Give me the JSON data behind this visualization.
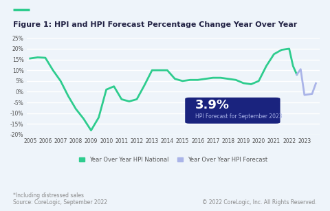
{
  "title": "Figure 1: HPI and HPI Forecast Percentage Change Year Over Year",
  "title_line_color": "#2ecc8e",
  "background_color": "#eef4fa",
  "plot_bg_color": "#eef4fa",
  "grid_color": "#ffffff",
  "hpi_national": {
    "years": [
      2005,
      2005.5,
      2006,
      2006.5,
      2007,
      2007.5,
      2008,
      2008.5,
      2009,
      2009.5,
      2010,
      2010.5,
      2011,
      2011.5,
      2012,
      2012.5,
      2013,
      2013.5,
      2014,
      2014.5,
      2015,
      2015.5,
      2016,
      2016.5,
      2017,
      2017.5,
      2018,
      2018.5,
      2019,
      2019.5,
      2020,
      2020.5,
      2021,
      2021.5,
      2022,
      2022.25,
      2022.5
    ],
    "values": [
      15.5,
      16.0,
      15.8,
      10.0,
      5.0,
      -2.0,
      -8.0,
      -12.5,
      -18.0,
      -12.0,
      1.0,
      2.5,
      -3.5,
      -4.5,
      -3.5,
      3.0,
      10.0,
      10.0,
      10.0,
      6.0,
      5.0,
      5.5,
      5.5,
      6.0,
      6.5,
      6.5,
      6.0,
      5.5,
      4.0,
      3.5,
      5.0,
      12.0,
      17.5,
      19.5,
      20.0,
      12.0,
      8.0
    ],
    "color": "#2ecc8e",
    "linewidth": 2.0
  },
  "hpi_forecast": {
    "years": [
      2022.5,
      2022.75,
      2023,
      2023.5,
      2023.75
    ],
    "values": [
      8.0,
      10.5,
      -1.5,
      -1.0,
      3.9
    ],
    "color": "#aab4e8",
    "linewidth": 2.0
  },
  "annotation": {
    "text_big": "3.9%",
    "text_small": "HPI Forecast for September 2023",
    "box_color": "#1a237e",
    "text_color": "#ffffff",
    "small_color": "#aab4e8"
  },
  "ylim": [
    -20,
    25
  ],
  "yticks": [
    -20,
    -15,
    -10,
    -5,
    0,
    5,
    10,
    15,
    20,
    25
  ],
  "ytick_labels": [
    "-20%",
    "-15%",
    "-10%",
    "-5%",
    "0%",
    "5%",
    "10%",
    "15%",
    "20%",
    "25%"
  ],
  "xlim": [
    2004.8,
    2024.0
  ],
  "xticks": [
    2005,
    2006,
    2007,
    2008,
    2009,
    2010,
    2011,
    2012,
    2013,
    2014,
    2015,
    2016,
    2017,
    2018,
    2019,
    2020,
    2021,
    2022,
    2023
  ],
  "legend": {
    "national_label": "Year Over Year HPI National",
    "forecast_label": "Year Over Year HPI Forecast",
    "national_color": "#2ecc8e",
    "forecast_color": "#aab4e8"
  },
  "footer_left": "*Including distressed sales\nSource: CoreLogic, September 2022",
  "footer_right": "© 2022 CoreLogic, Inc. All Rights Reserved.",
  "footer_color": "#888888",
  "footer_fontsize": 5.5
}
